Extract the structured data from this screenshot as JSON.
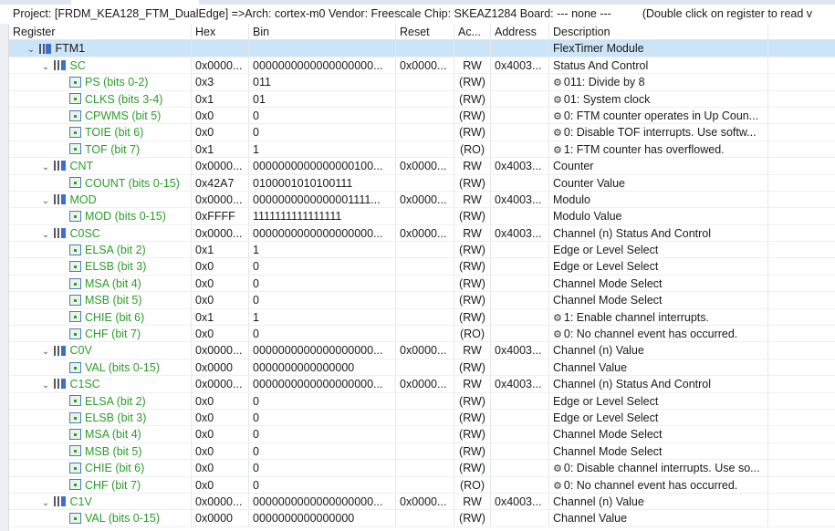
{
  "project_line": "Project: [FRDM_KEA128_FTM_DualEdge] =>Arch: cortex-m0  Vendor: Freescale  Chip: SKEAZ1284  Board: ---  none ---",
  "hint": "(Double click on register to read v",
  "columns": [
    "Register",
    "Hex",
    "Bin",
    "Reset",
    "Ac...",
    "Address",
    "Description"
  ],
  "rows": [
    {
      "level": 0,
      "type": "module",
      "name": "FTM1",
      "hex": "",
      "bin": "",
      "reset": "",
      "access": "",
      "address": "",
      "desc": "FlexTimer Module",
      "gear": false,
      "selected": true
    },
    {
      "level": 1,
      "type": "register",
      "name": "SC",
      "hex": "0x0000...",
      "bin": "0000000000000000000...",
      "reset": "0x0000...",
      "access": "RW",
      "address": "0x4003...",
      "desc": "Status And Control",
      "gear": false
    },
    {
      "level": 2,
      "type": "field",
      "name": "PS (bits 0-2)",
      "hex": "0x3",
      "bin": "011",
      "reset": "",
      "access": "(RW)",
      "address": "",
      "desc": "011: Divide by 8",
      "gear": true
    },
    {
      "level": 2,
      "type": "field",
      "name": "CLKS (bits 3-4)",
      "hex": "0x1",
      "bin": "01",
      "reset": "",
      "access": "(RW)",
      "address": "",
      "desc": "01: System clock",
      "gear": true
    },
    {
      "level": 2,
      "type": "field",
      "name": "CPWMS (bit 5)",
      "hex": "0x0",
      "bin": "0",
      "reset": "",
      "access": "(RW)",
      "address": "",
      "desc": "0: FTM counter operates in Up Coun...",
      "gear": true
    },
    {
      "level": 2,
      "type": "field",
      "name": "TOIE (bit 6)",
      "hex": "0x0",
      "bin": "0",
      "reset": "",
      "access": "(RW)",
      "address": "",
      "desc": "0: Disable TOF interrupts. Use softw...",
      "gear": true
    },
    {
      "level": 2,
      "type": "field",
      "name": "TOF (bit 7)",
      "hex": "0x1",
      "bin": "1",
      "reset": "",
      "access": "(RO)",
      "address": "",
      "desc": "1: FTM counter has overflowed.",
      "gear": true
    },
    {
      "level": 1,
      "type": "register",
      "name": "CNT",
      "hex": "0x0000...",
      "bin": "0000000000000000100...",
      "reset": "0x0000...",
      "access": "RW",
      "address": "0x4003...",
      "desc": "Counter",
      "gear": false
    },
    {
      "level": 2,
      "type": "field",
      "name": "COUNT (bits 0-15)",
      "hex": "0x42A7",
      "bin": "0100001010100111",
      "reset": "",
      "access": "(RW)",
      "address": "",
      "desc": "Counter Value",
      "gear": false
    },
    {
      "level": 1,
      "type": "register",
      "name": "MOD",
      "hex": "0x0000...",
      "bin": "0000000000000001111...",
      "reset": "0x0000...",
      "access": "RW",
      "address": "0x4003...",
      "desc": "Modulo",
      "gear": false
    },
    {
      "level": 2,
      "type": "field",
      "name": "MOD (bits 0-15)",
      "hex": "0xFFFF",
      "bin": "1111111111111111",
      "reset": "",
      "access": "(RW)",
      "address": "",
      "desc": "Modulo Value",
      "gear": false
    },
    {
      "level": 1,
      "type": "register",
      "name": "C0SC",
      "hex": "0x0000...",
      "bin": "0000000000000000000...",
      "reset": "0x0000...",
      "access": "RW",
      "address": "0x4003...",
      "desc": "Channel (n) Status And Control",
      "gear": false
    },
    {
      "level": 2,
      "type": "field",
      "name": "ELSA (bit 2)",
      "hex": "0x1",
      "bin": "1",
      "reset": "",
      "access": "(RW)",
      "address": "",
      "desc": "Edge or Level Select",
      "gear": false
    },
    {
      "level": 2,
      "type": "field",
      "name": "ELSB (bit 3)",
      "hex": "0x0",
      "bin": "0",
      "reset": "",
      "access": "(RW)",
      "address": "",
      "desc": "Edge or Level Select",
      "gear": false
    },
    {
      "level": 2,
      "type": "field",
      "name": "MSA (bit 4)",
      "hex": "0x0",
      "bin": "0",
      "reset": "",
      "access": "(RW)",
      "address": "",
      "desc": "Channel Mode Select",
      "gear": false
    },
    {
      "level": 2,
      "type": "field",
      "name": "MSB (bit 5)",
      "hex": "0x0",
      "bin": "0",
      "reset": "",
      "access": "(RW)",
      "address": "",
      "desc": "Channel Mode Select",
      "gear": false
    },
    {
      "level": 2,
      "type": "field",
      "name": "CHIE (bit 6)",
      "hex": "0x1",
      "bin": "1",
      "reset": "",
      "access": "(RW)",
      "address": "",
      "desc": "1: Enable channel interrupts.",
      "gear": true
    },
    {
      "level": 2,
      "type": "field",
      "name": "CHF (bit 7)",
      "hex": "0x0",
      "bin": "0",
      "reset": "",
      "access": "(RO)",
      "address": "",
      "desc": "0: No channel event has occurred.",
      "gear": true
    },
    {
      "level": 1,
      "type": "register",
      "name": "C0V",
      "hex": "0x0000...",
      "bin": "0000000000000000000...",
      "reset": "0x0000...",
      "access": "RW",
      "address": "0x4003...",
      "desc": "Channel (n) Value",
      "gear": false
    },
    {
      "level": 2,
      "type": "field",
      "name": "VAL (bits 0-15)",
      "hex": "0x0000",
      "bin": "0000000000000000",
      "reset": "",
      "access": "(RW)",
      "address": "",
      "desc": "Channel Value",
      "gear": false
    },
    {
      "level": 1,
      "type": "register",
      "name": "C1SC",
      "hex": "0x0000...",
      "bin": "0000000000000000000...",
      "reset": "0x0000...",
      "access": "RW",
      "address": "0x4003...",
      "desc": "Channel (n) Status And Control",
      "gear": false
    },
    {
      "level": 2,
      "type": "field",
      "name": "ELSA (bit 2)",
      "hex": "0x0",
      "bin": "0",
      "reset": "",
      "access": "(RW)",
      "address": "",
      "desc": "Edge or Level Select",
      "gear": false
    },
    {
      "level": 2,
      "type": "field",
      "name": "ELSB (bit 3)",
      "hex": "0x0",
      "bin": "0",
      "reset": "",
      "access": "(RW)",
      "address": "",
      "desc": "Edge or Level Select",
      "gear": false
    },
    {
      "level": 2,
      "type": "field",
      "name": "MSA (bit 4)",
      "hex": "0x0",
      "bin": "0",
      "reset": "",
      "access": "(RW)",
      "address": "",
      "desc": "Channel Mode Select",
      "gear": false
    },
    {
      "level": 2,
      "type": "field",
      "name": "MSB (bit 5)",
      "hex": "0x0",
      "bin": "0",
      "reset": "",
      "access": "(RW)",
      "address": "",
      "desc": "Channel Mode Select",
      "gear": false
    },
    {
      "level": 2,
      "type": "field",
      "name": "CHIE (bit 6)",
      "hex": "0x0",
      "bin": "0",
      "reset": "",
      "access": "(RW)",
      "address": "",
      "desc": "0: Disable channel interrupts. Use so...",
      "gear": true
    },
    {
      "level": 2,
      "type": "field",
      "name": "CHF (bit 7)",
      "hex": "0x0",
      "bin": "0",
      "reset": "",
      "access": "(RO)",
      "address": "",
      "desc": "0: No channel event has occurred.",
      "gear": true
    },
    {
      "level": 1,
      "type": "register",
      "name": "C1V",
      "hex": "0x0000...",
      "bin": "0000000000000000000...",
      "reset": "0x0000...",
      "access": "RW",
      "address": "0x4003...",
      "desc": "Channel (n) Value",
      "gear": false
    },
    {
      "level": 2,
      "type": "field",
      "name": "VAL (bits 0-15)",
      "hex": "0x0000",
      "bin": "0000000000000000",
      "reset": "",
      "access": "(RW)",
      "address": "",
      "desc": "Channel Value",
      "gear": false
    }
  ]
}
